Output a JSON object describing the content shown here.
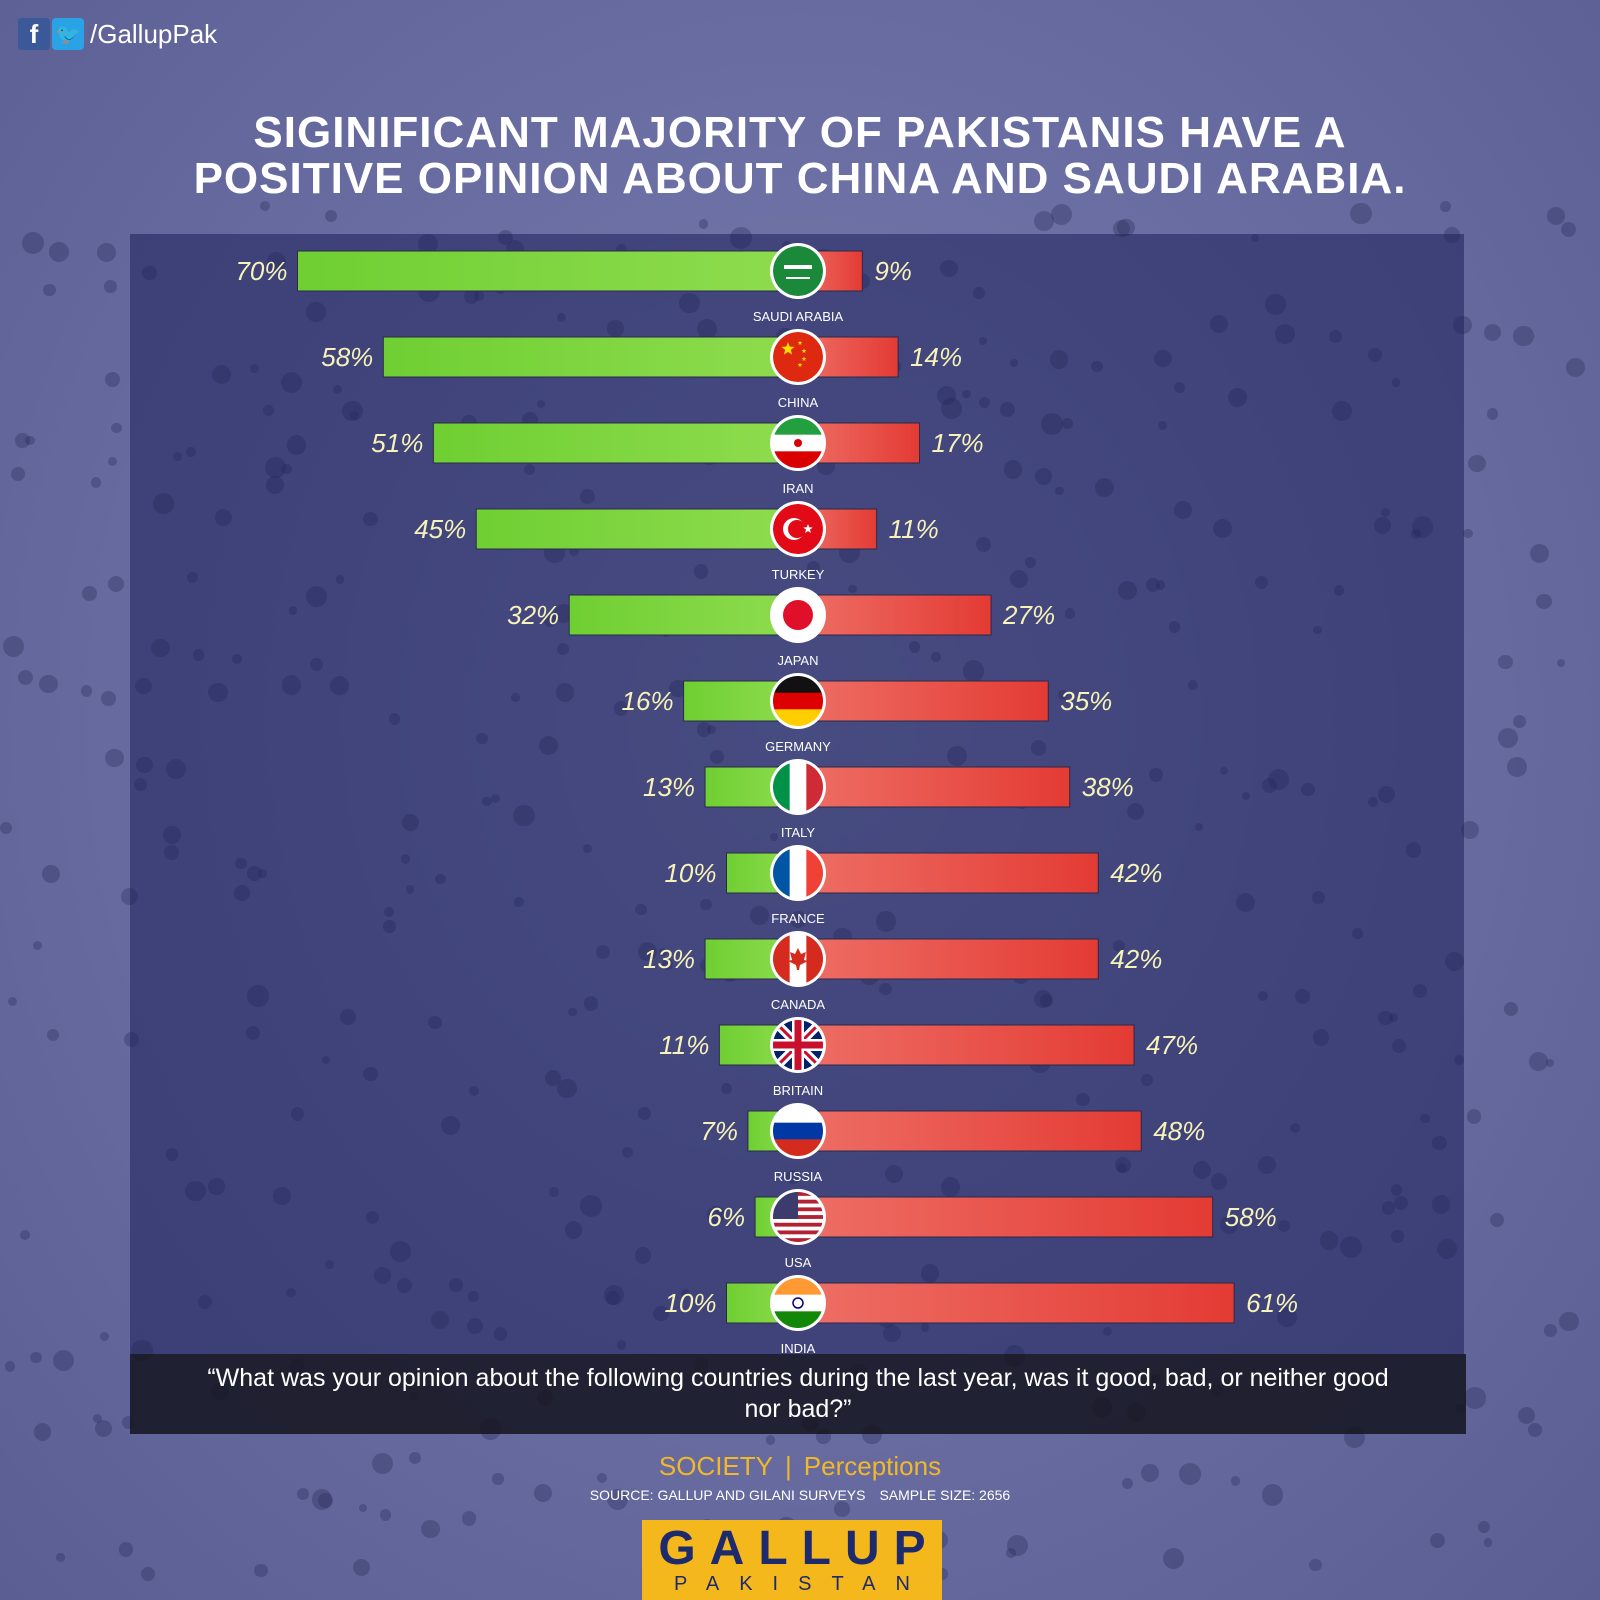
{
  "header": {
    "social_handle": "/GallupPak"
  },
  "title_lines": [
    "SIGINIFICANT MAJORITY OF PAKISTANIS HAVE A",
    "POSITIVE OPINION ABOUT CHINA AND SAUDI ARABIA."
  ],
  "colors": {
    "positive": "#8fdc4f",
    "negative": "#e33b34",
    "label": "#f6f2b8",
    "background": "#6b6fa3",
    "accent": "#f5b81c"
  },
  "chart_data": {
    "type": "bar",
    "orientation": "horizontal-diverging",
    "categories": [
      "SAUDI ARABIA",
      "CHINA",
      "IRAN",
      "TURKEY",
      "JAPAN",
      "GERMANY",
      "ITALY",
      "FRANCE",
      "CANADA",
      "BRITAIN",
      "RUSSIA",
      "USA",
      "INDIA"
    ],
    "series": [
      {
        "values": [
          70,
          58,
          51,
          45,
          32,
          16,
          13,
          10,
          13,
          11,
          7,
          6,
          10
        ]
      },
      {
        "values": [
          9,
          14,
          17,
          11,
          27,
          35,
          38,
          42,
          42,
          47,
          48,
          58,
          61
        ]
      }
    ],
    "positive_labels": [
      "70%",
      "58%",
      "51%",
      "45%",
      "32%",
      "16%",
      "13%",
      "10%",
      "13%",
      "11%",
      "7%",
      "6%",
      "10%"
    ],
    "negative_labels": [
      "9%",
      "14%",
      "17%",
      "11%",
      "27%",
      "35%",
      "38%",
      "42%",
      "42%",
      "47%",
      "48%",
      "58%",
      "61%"
    ],
    "flag_icons": [
      "saudi-arabia-flag-icon",
      "china-flag-icon",
      "iran-flag-icon",
      "turkey-flag-icon",
      "japan-flag-icon",
      "germany-flag-icon",
      "italy-flag-icon",
      "france-flag-icon",
      "canada-flag-icon",
      "britain-flag-icon",
      "russia-flag-icon",
      "usa-flag-icon",
      "india-flag-icon"
    ],
    "xlim": [
      0,
      100
    ]
  },
  "question": "“What was your opinion about the following countries during the last year, was it good, bad, or neither good nor bad?”",
  "footer": {
    "category": "SOCIETY",
    "separator": "|",
    "subcategory": "Perceptions",
    "source": "SOURCE: GALLUP AND GILANI SURVEYS",
    "sample": "SAMPLE SIZE: 2656",
    "logo_main": "GALLUP",
    "logo_sub": "PAKISTAN"
  }
}
